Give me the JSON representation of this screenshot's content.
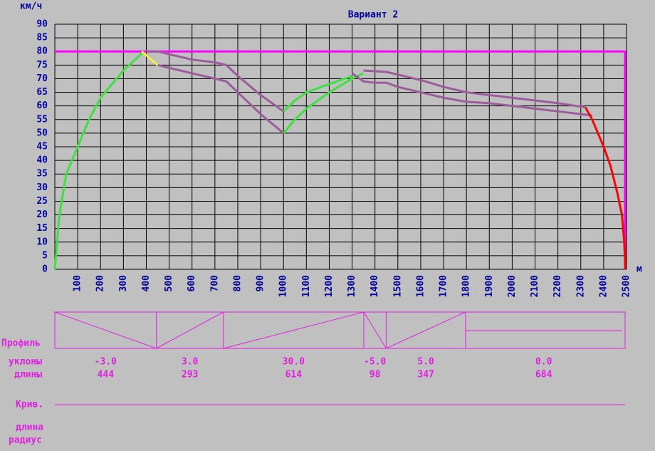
{
  "chart_data": {
    "type": "line",
    "title": "Вариант 2",
    "y_label": "км/ч",
    "x_label": "м",
    "xlim": [
      0,
      2500
    ],
    "ylim": [
      0,
      90
    ],
    "xticks": [
      100,
      200,
      300,
      400,
      500,
      600,
      700,
      800,
      900,
      1000,
      1100,
      1200,
      1300,
      1400,
      1500,
      1600,
      1700,
      1800,
      1900,
      2000,
      2100,
      2200,
      2300,
      2400,
      2500
    ],
    "yticks": [
      0,
      5,
      10,
      15,
      20,
      25,
      30,
      35,
      40,
      45,
      50,
      55,
      60,
      65,
      70,
      75,
      80,
      85,
      90
    ],
    "grid": true,
    "speed_limit": 80,
    "limit_color": "#ff00ff",
    "series": [
      {
        "color": "#40e040",
        "x": [
          0,
          20,
          50,
          100,
          150,
          200,
          250,
          300,
          350,
          390
        ],
        "values": [
          0,
          20,
          35,
          45,
          55,
          63,
          68,
          73,
          77,
          80
        ]
      },
      {
        "color": "#f0f040",
        "x": [
          380,
          450
        ],
        "values": [
          80,
          75
        ]
      },
      {
        "color": "#9c5c9c",
        "x": [
          400,
          450,
          500,
          600,
          700,
          750,
          800,
          900,
          1000
        ],
        "values": [
          80,
          80,
          79,
          77,
          76,
          75,
          71,
          64,
          58
        ]
      },
      {
        "color": "#9c5c9c",
        "x": [
          450,
          500,
          600,
          700,
          750,
          800,
          900,
          1000
        ],
        "values": [
          75,
          74,
          72,
          70,
          69,
          65,
          57,
          50
        ]
      },
      {
        "color": "#40e040",
        "x": [
          1000,
          1050,
          1100,
          1200,
          1300
        ],
        "values": [
          58,
          62,
          65,
          68,
          71
        ]
      },
      {
        "color": "#40e040",
        "x": [
          1000,
          1050,
          1100,
          1150,
          1200,
          1300,
          1350
        ],
        "values": [
          50,
          55,
          59,
          62,
          65,
          70,
          72
        ]
      },
      {
        "color": "#9c5c9c",
        "x": [
          1300,
          1350,
          1400,
          1450,
          1500,
          1600,
          1700,
          1800,
          1900,
          2000,
          2100,
          2200,
          2300,
          2350
        ],
        "values": [
          72,
          69,
          68.5,
          68.5,
          67,
          65,
          63,
          61.5,
          61,
          60,
          59,
          58,
          57,
          56.5
        ]
      },
      {
        "color": "#9c5c9c",
        "x": [
          1350,
          1450,
          1500,
          1600,
          1700,
          1800,
          1900,
          2000,
          2100,
          2200,
          2320
        ],
        "values": [
          73,
          72.5,
          71.5,
          69.5,
          67,
          65,
          64,
          63,
          62,
          61,
          59.5
        ]
      },
      {
        "color": "#ff0000",
        "x": [
          2320,
          2350,
          2400,
          2430,
          2460,
          2480,
          2490,
          2495
        ],
        "values": [
          59.5,
          55,
          45,
          38,
          28,
          20,
          10,
          0
        ]
      }
    ]
  },
  "profile": {
    "label": "Профиль",
    "slopes_label": "уклоны",
    "lengths_label": "длины",
    "segments": [
      {
        "slope": {
          "value": -3,
          "label": "-3.0"
        },
        "length": 444
      },
      {
        "slope": {
          "value": 3,
          "label": "3.0"
        },
        "length": 293
      },
      {
        "slope": {
          "value": 30,
          "label": "30.0"
        },
        "length": 614
      },
      {
        "slope": {
          "value": -5,
          "label": "-5.0"
        },
        "length": 98
      },
      {
        "slope": {
          "value": 5,
          "label": "5.0"
        },
        "length": 347
      },
      {
        "slope": {
          "value": 0,
          "label": "0.0"
        },
        "length": 684
      }
    ]
  },
  "curves": {
    "label": "Крив.",
    "length_label": "длина",
    "radius_label": "радиус"
  }
}
